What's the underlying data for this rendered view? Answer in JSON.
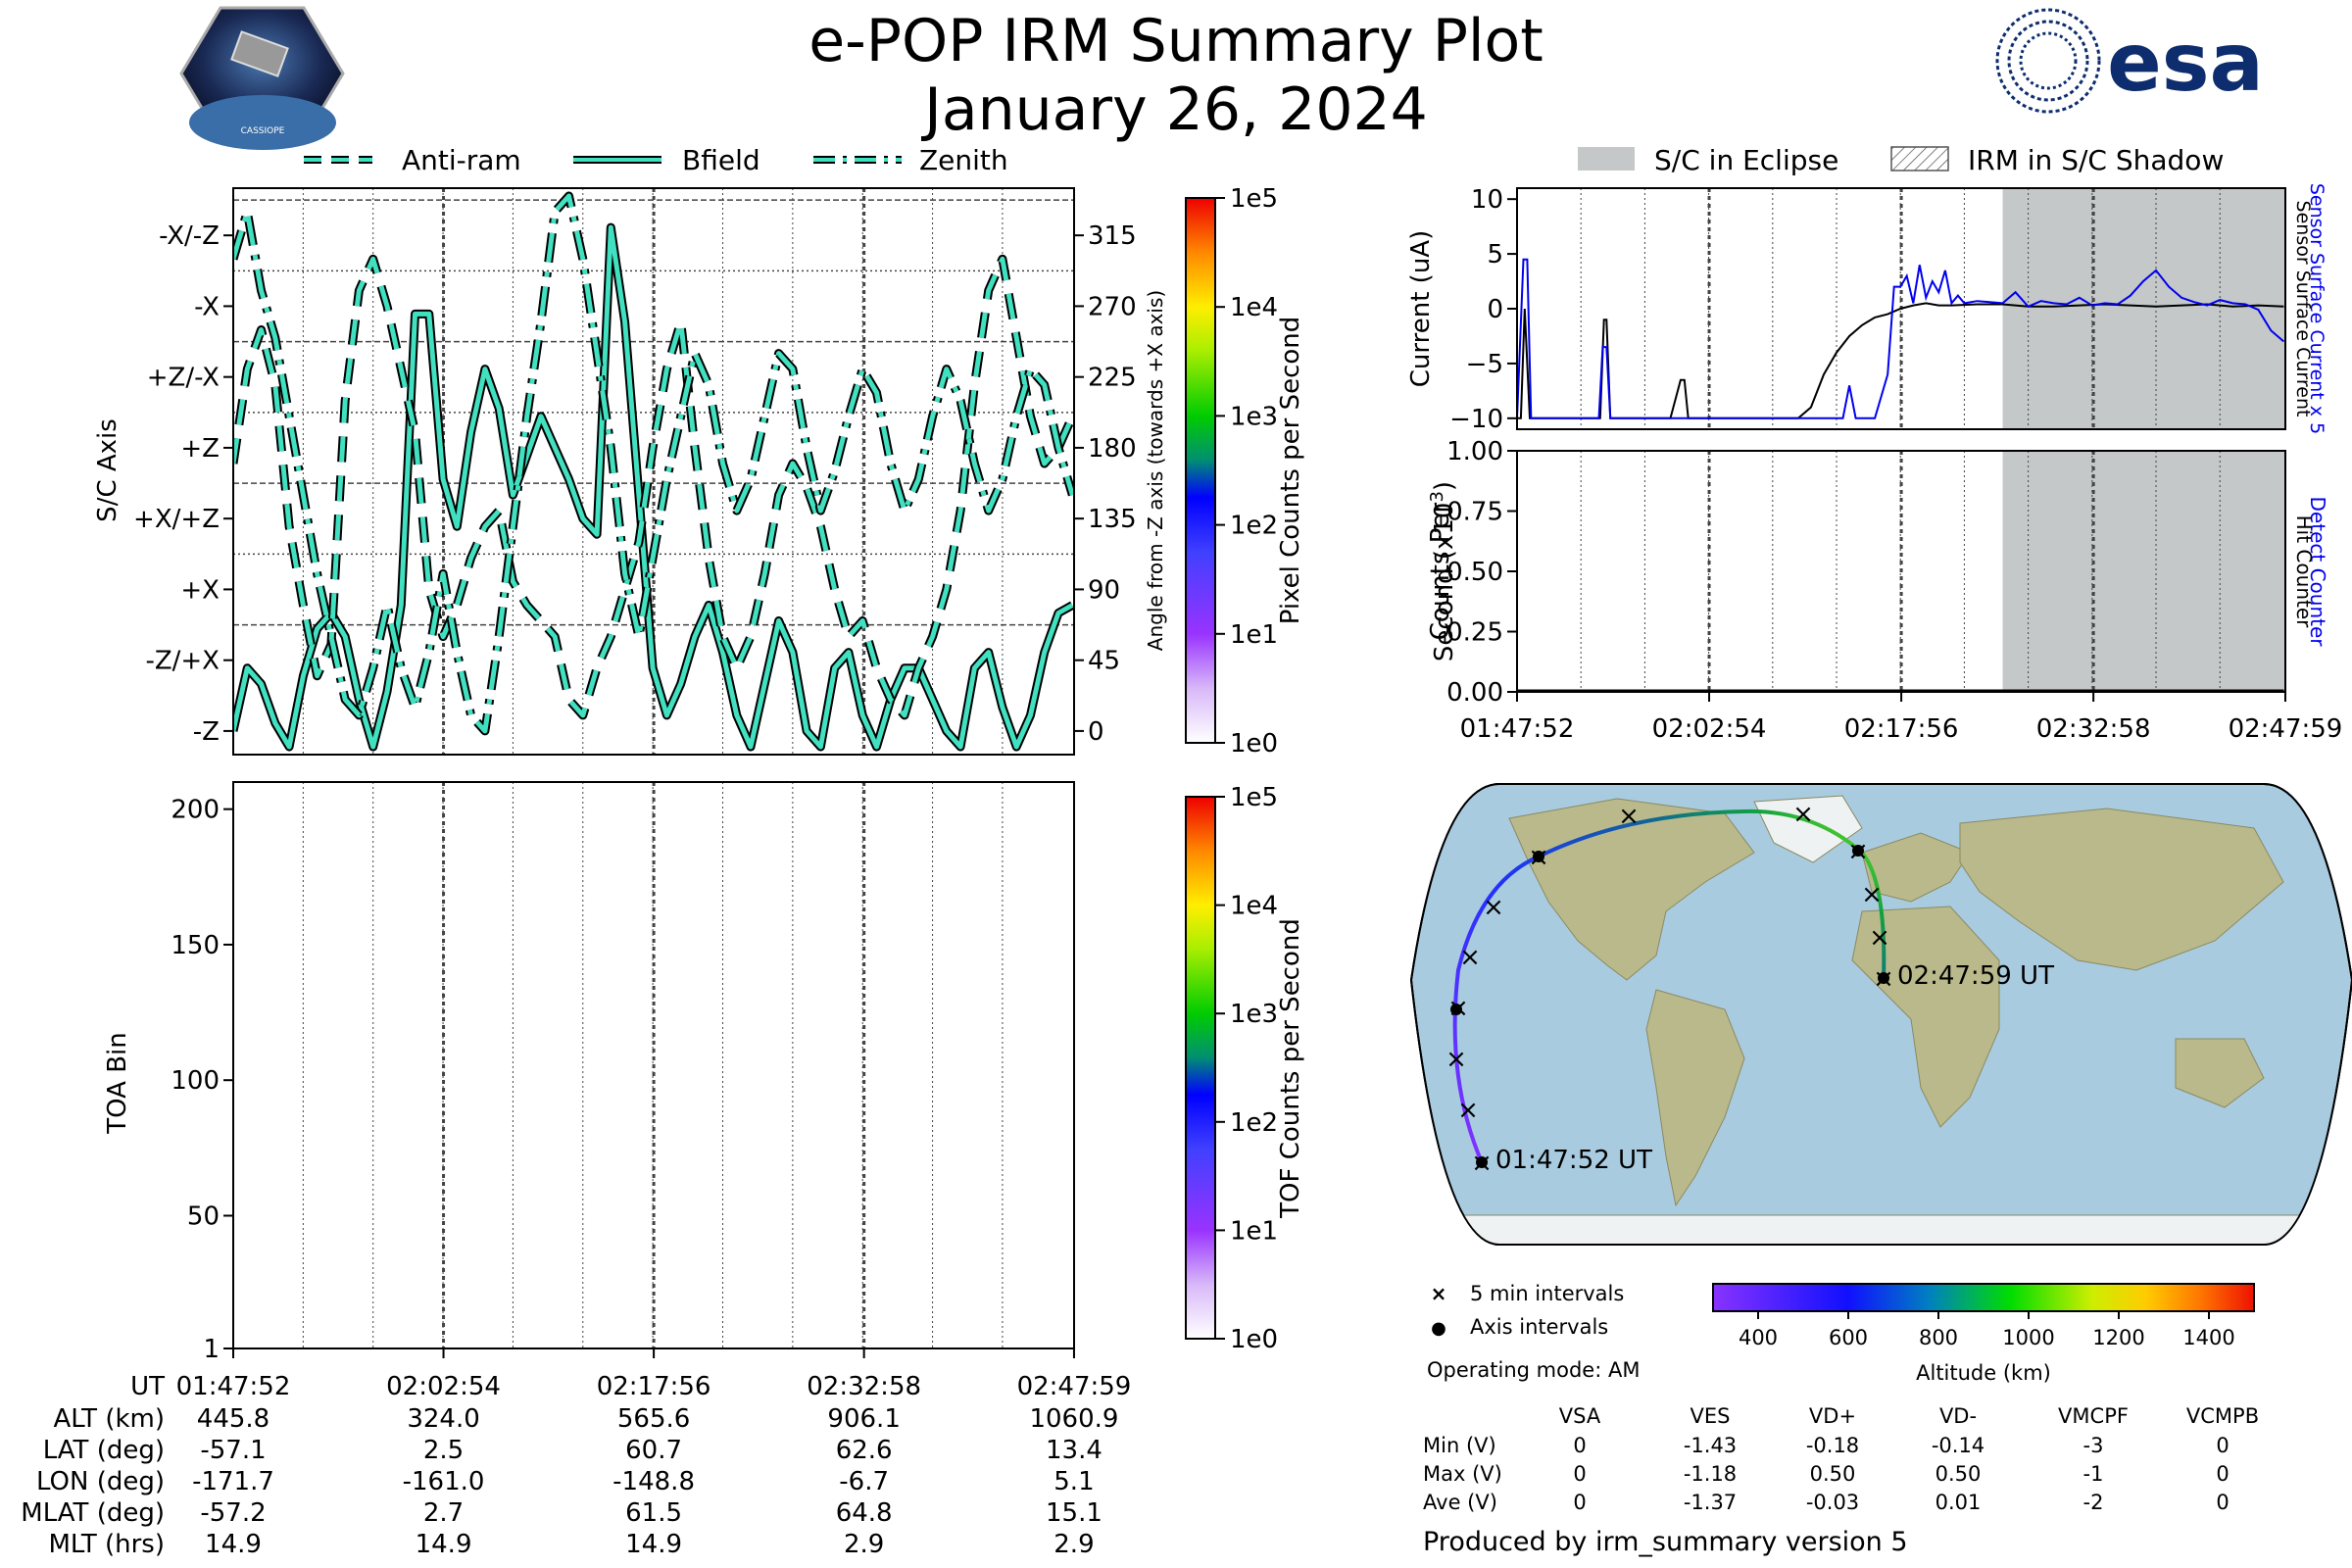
{
  "header": {
    "title": "e-POP IRM Summary Plot",
    "date": "January 26, 2024",
    "left_logo": "cassiope-mission-badge-icon",
    "left_logo_text": "CASSIOPE",
    "right_logo_text": "esa",
    "right_logo": "esa-logo-icon"
  },
  "legend_top_left": {
    "items": [
      {
        "label": "Anti-ram",
        "style": "dashed"
      },
      {
        "label": "Bfield",
        "style": "solid"
      },
      {
        "label": "Zenith",
        "style": "dashdot"
      }
    ]
  },
  "legend_top_right": {
    "items": [
      {
        "label": "S/C in Eclipse",
        "style": "filled-gray"
      },
      {
        "label": "IRM in S/C Shadow",
        "style": "hatched"
      }
    ]
  },
  "colors": {
    "line_fill": "#40e0c0",
    "line_edge": "#000000",
    "eclipse": "#c5c8c8",
    "blue_trace": "#0000ee",
    "ocean": "#a9cbe0",
    "land": "#b5b88a"
  },
  "time_axis": {
    "ticks": [
      "01:47:52",
      "02:02:54",
      "02:17:56",
      "02:32:58",
      "02:47:59"
    ],
    "ut_label": "UT"
  },
  "ephemeris": {
    "rows": [
      {
        "label": "ALT (km)",
        "values": [
          "445.8",
          "324.0",
          "565.6",
          "906.1",
          "1060.9"
        ]
      },
      {
        "label": "LAT (deg)",
        "values": [
          "-57.1",
          "2.5",
          "60.7",
          "62.6",
          "13.4"
        ]
      },
      {
        "label": "LON (deg)",
        "values": [
          "-171.7",
          "-161.0",
          "-148.8",
          "-6.7",
          "5.1"
        ]
      },
      {
        "label": "MLAT (deg)",
        "values": [
          "-57.2",
          "2.7",
          "61.5",
          "64.8",
          "15.1"
        ]
      },
      {
        "label": "MLT (hrs)",
        "values": [
          "14.9",
          "14.9",
          "14.9",
          "2.9",
          "2.9"
        ]
      }
    ]
  },
  "chart_data": [
    {
      "type": "line",
      "name_axis_left": "S/C Axis",
      "ylabel": "S/C Axis",
      "y2label": "Angle from -Z axis (towards +X axis)",
      "y_tick_labels": [
        "-Z",
        "-Z/+X",
        "+X",
        "+X/+Z",
        "+Z",
        "+Z/-X",
        "-X",
        "-X/-Z"
      ],
      "y_ticks": [
        0,
        45,
        90,
        135,
        180,
        225,
        270,
        315
      ],
      "ylim": [
        -15,
        345
      ],
      "xlim_minutes": [
        0,
        60.12
      ],
      "series": [
        {
          "name": "Bfield",
          "style": "solid",
          "x": [
            0,
            1,
            2,
            3,
            4,
            5,
            6,
            7,
            8,
            9,
            10,
            11,
            12,
            13,
            14,
            15,
            16,
            17,
            18,
            19,
            20,
            21,
            22,
            23,
            24,
            25,
            26,
            27,
            28,
            29,
            30,
            31,
            32,
            33,
            34,
            35,
            36,
            37,
            38,
            39,
            40,
            41,
            42,
            43,
            44,
            45,
            46,
            47,
            48,
            49,
            50,
            51,
            52,
            53,
            54,
            55,
            56,
            57,
            58,
            59,
            60
          ],
          "y": [
            0,
            40,
            30,
            5,
            -10,
            35,
            65,
            75,
            60,
            20,
            -10,
            25,
            80,
            265,
            265,
            160,
            130,
            190,
            230,
            205,
            150,
            175,
            200,
            180,
            160,
            135,
            125,
            320,
            260,
            150,
            40,
            10,
            30,
            60,
            80,
            50,
            10,
            -10,
            30,
            70,
            50,
            0,
            -10,
            40,
            50,
            10,
            -10,
            20,
            40,
            40,
            20,
            0,
            -10,
            40,
            50,
            15,
            -10,
            10,
            50,
            75,
            80
          ]
        },
        {
          "name": "Anti-ram",
          "style": "dashed",
          "x": [
            0,
            1,
            2,
            3,
            4,
            5,
            6,
            7,
            8,
            9,
            10,
            11,
            12,
            13,
            14,
            15,
            16,
            17,
            18,
            19,
            20,
            21,
            22,
            23,
            24,
            25,
            26,
            27,
            28,
            29,
            30,
            31,
            32,
            33,
            34,
            35,
            36,
            37,
            38,
            39,
            40,
            41,
            42,
            43,
            44,
            45,
            46,
            47,
            48,
            49,
            50,
            51,
            52,
            53,
            54,
            55,
            56,
            57,
            58,
            59,
            60
          ],
          "y": [
            170,
            230,
            255,
            220,
            130,
            80,
            35,
            55,
            210,
            280,
            300,
            270,
            230,
            190,
            90,
            60,
            80,
            110,
            130,
            140,
            95,
            80,
            70,
            60,
            20,
            10,
            40,
            60,
            90,
            120,
            180,
            230,
            260,
            180,
            110,
            60,
            40,
            60,
            100,
            150,
            170,
            155,
            130,
            90,
            60,
            70,
            40,
            20,
            10,
            40,
            60,
            90,
            140,
            220,
            280,
            300,
            250,
            200,
            170,
            180,
            200
          ]
        },
        {
          "name": "Zenith",
          "style": "dashdot",
          "x": [
            0,
            1,
            2,
            3,
            4,
            5,
            6,
            7,
            8,
            9,
            10,
            11,
            12,
            13,
            14,
            15,
            16,
            17,
            18,
            19,
            20,
            21,
            22,
            23,
            24,
            25,
            26,
            27,
            28,
            29,
            30,
            31,
            32,
            33,
            34,
            35,
            36,
            37,
            38,
            39,
            40,
            41,
            42,
            43,
            44,
            45,
            46,
            47,
            48,
            49,
            50,
            51,
            52,
            53,
            54,
            55,
            56,
            57,
            58,
            59,
            60
          ],
          "y": [
            300,
            330,
            280,
            250,
            200,
            150,
            100,
            60,
            20,
            10,
            40,
            80,
            40,
            15,
            50,
            100,
            50,
            10,
            0,
            60,
            130,
            200,
            260,
            330,
            340,
            300,
            240,
            180,
            100,
            60,
            110,
            160,
            200,
            240,
            220,
            170,
            140,
            160,
            200,
            240,
            230,
            180,
            140,
            165,
            200,
            230,
            215,
            170,
            140,
            160,
            200,
            230,
            210,
            170,
            140,
            160,
            200,
            230,
            220,
            180,
            150
          ]
        }
      ],
      "colorbar": {
        "label": "Pixel Counts per Second",
        "ticks": [
          "1e0",
          "1e1",
          "1e2",
          "1e3",
          "1e4",
          "1e5"
        ]
      }
    },
    {
      "type": "heatmap",
      "ylabel": "TOA Bin",
      "y_ticks": [
        1,
        50,
        100,
        150,
        200
      ],
      "ylim": [
        1,
        210
      ],
      "values": [],
      "colorbar": {
        "label": "TOF Counts per Second",
        "ticks": [
          "1e0",
          "1e1",
          "1e2",
          "1e3",
          "1e4",
          "1e5"
        ]
      }
    },
    {
      "type": "line",
      "ylabel": "Current (uA)",
      "y2label_blue": "Sensor Surface Current x 5",
      "y2label_black": "Sensor Surface Current",
      "y_ticks": [
        10,
        5,
        0,
        -5,
        -10
      ],
      "ylim": [
        -11,
        11
      ],
      "eclipse_start_minutes": 38.0,
      "series": [
        {
          "name": "Sensor Surface Current",
          "color": "#000000",
          "x": [
            0,
            0.3,
            0.6,
            1.0,
            1.5,
            2,
            4,
            6.5,
            6.8,
            7.0,
            7.3,
            8,
            12,
            12.8,
            13.1,
            13.4,
            14,
            18,
            20,
            22,
            23,
            24,
            25,
            26,
            27,
            28,
            29,
            30,
            31,
            32,
            33,
            34,
            36,
            38,
            40,
            42,
            44,
            46,
            48,
            50,
            52,
            54,
            56,
            58,
            60
          ],
          "y": [
            -10,
            -10,
            0,
            -10,
            -10,
            -10,
            -10,
            -10,
            -1,
            -1,
            -10,
            -10,
            -10,
            -6.5,
            -6.5,
            -10,
            -10,
            -10,
            -10,
            -10,
            -9,
            -6,
            -4,
            -2.5,
            -1.5,
            -0.8,
            -0.5,
            0,
            0.3,
            0.5,
            0.3,
            0.3,
            0.4,
            0.4,
            0.2,
            0.2,
            0.3,
            0.4,
            0.3,
            0.2,
            0.3,
            0.4,
            0.2,
            0.3,
            0.2
          ]
        },
        {
          "name": "Sensor Surface Current x 5",
          "color": "#0000ee",
          "x": [
            0,
            0.5,
            0.8,
            1.1,
            1.4,
            1.7,
            6.4,
            6.7,
            7.0,
            7.3,
            25.5,
            26.0,
            26.5,
            27.0,
            28,
            29,
            29.5,
            30,
            30.5,
            31,
            31.5,
            32,
            32.5,
            33,
            33.5,
            34,
            34.5,
            35,
            36,
            37,
            38,
            39,
            40,
            41,
            42,
            43,
            44,
            45,
            46,
            47,
            48,
            49,
            50,
            51,
            52,
            53,
            54,
            55,
            56,
            57,
            58,
            59,
            60
          ],
          "y": [
            -10,
            4.5,
            4.5,
            -10,
            -10,
            -10,
            -10,
            -3.5,
            -3.5,
            -10,
            -10,
            -7,
            -10,
            -10,
            -10,
            -6,
            2,
            2,
            3,
            0.5,
            4,
            1,
            2.5,
            1.5,
            3.5,
            0.5,
            1.2,
            0.5,
            0.7,
            0.6,
            0.5,
            1.5,
            0.2,
            0.7,
            0.5,
            0.4,
            1.0,
            0.3,
            0.5,
            0.4,
            1.2,
            2.5,
            3.5,
            2.0,
            1.0,
            0.6,
            0.3,
            0.8,
            0.5,
            0.4,
            -0.1,
            -2,
            -3
          ]
        }
      ]
    },
    {
      "type": "line",
      "ylabel_line1": "Counts Per",
      "ylabel_line2": "Second (x10",
      "ylabel_sup": "3",
      "ylabel_close": ")",
      "y2label_blue": "Detect Counter",
      "y2label_black": "Hit Counter",
      "y_ticks": [
        "1.00",
        "0.75",
        "0.50",
        "0.25",
        "0.00"
      ],
      "ylim": [
        0,
        1
      ],
      "series": [
        {
          "name": "Detect Counter",
          "color": "#0000ee",
          "x": [
            0,
            60
          ],
          "y": [
            0,
            0
          ]
        },
        {
          "name": "Hit Counter",
          "color": "#000000",
          "x": [
            0,
            60
          ],
          "y": [
            0,
            0
          ]
        }
      ]
    }
  ],
  "map": {
    "start_label": "01:47:52 UT",
    "end_label": "02:47:59 UT",
    "legend": [
      {
        "marker": "×",
        "label": "5 min intervals"
      },
      {
        "marker": "●",
        "label": "Axis intervals"
      }
    ],
    "operating_mode": "Operating mode: AM",
    "altitude_colorbar": {
      "label": "Altitude (km)",
      "ticks": [
        "400",
        "600",
        "800",
        "1000",
        "1200",
        "1400"
      ]
    }
  },
  "voltage_table": {
    "columns": [
      "",
      "VSA",
      "VES",
      "VD+",
      "VD-",
      "VMCPF",
      "VCMPB"
    ],
    "rows": [
      [
        "Min (V)",
        "0",
        "-1.43",
        "-0.18",
        "-0.14",
        "-3",
        "0"
      ],
      [
        "Max (V)",
        "0",
        "-1.18",
        "0.50",
        "0.50",
        "-1",
        "0"
      ],
      [
        "Ave (V)",
        "0",
        "-1.37",
        "-0.03",
        "0.01",
        "-2",
        "0"
      ]
    ]
  },
  "footer": "Produced by irm_summary version 5"
}
